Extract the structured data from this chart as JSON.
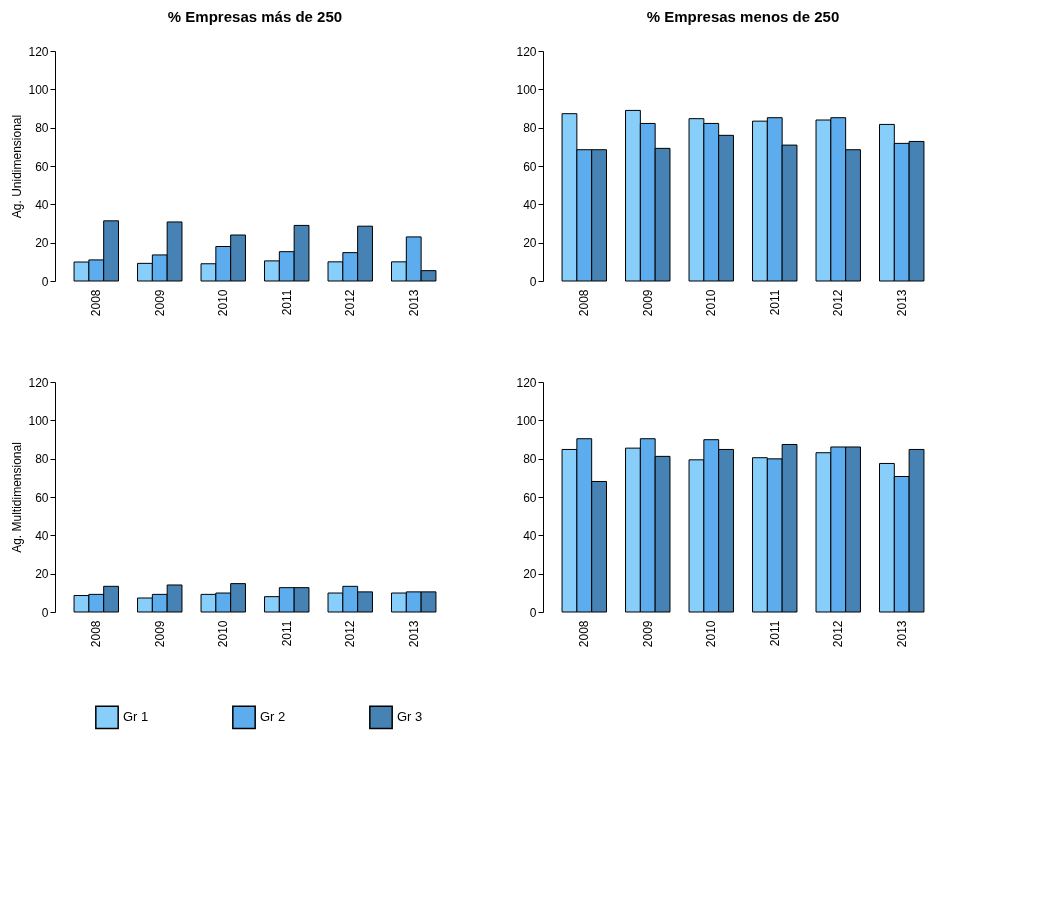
{
  "chart_data": [
    {
      "type": "bar",
      "title": "% Empresas más de 250",
      "ylabel": "Ag. Unidimensional",
      "categories": [
        "2008",
        "2009",
        "2010",
        "2011",
        "2012",
        "2013"
      ],
      "ylim": [
        0,
        120
      ],
      "yticks": [
        0,
        20,
        40,
        60,
        80,
        100,
        120
      ],
      "grid": false,
      "legend": "bottom",
      "series": [
        {
          "name": "Gr 1",
          "color": "#87cefa",
          "values": [
            9.9,
            9.2,
            9.0,
            10.5,
            10.0,
            10.0
          ]
        },
        {
          "name": "Gr 2",
          "color": "#5cacee",
          "values": [
            11.0,
            13.6,
            18.0,
            15.3,
            14.8,
            23.0
          ]
        },
        {
          "name": "Gr 3",
          "color": "#4682b4",
          "values": [
            31.4,
            30.8,
            24.0,
            29.0,
            28.6,
            5.4
          ]
        }
      ]
    },
    {
      "type": "bar",
      "title": "% Empresas menos de 250",
      "categories": [
        "2008",
        "2009",
        "2010",
        "2011",
        "2012",
        "2013"
      ],
      "ylim": [
        0,
        120
      ],
      "yticks": [
        0,
        20,
        40,
        60,
        80,
        100,
        120
      ],
      "grid": false,
      "legend": "bottom",
      "series": [
        {
          "name": "Gr 1",
          "color": "#87cefa",
          "values": [
            87.3,
            89.0,
            84.7,
            83.4,
            84.0,
            81.7
          ]
        },
        {
          "name": "Gr 2",
          "color": "#5cacee",
          "values": [
            68.5,
            82.2,
            82.2,
            85.2,
            85.2,
            71.8
          ]
        },
        {
          "name": "Gr 3",
          "color": "#4682b4",
          "values": [
            68.5,
            69.2,
            76.0,
            70.9,
            68.5,
            72.8
          ]
        }
      ]
    },
    {
      "type": "bar",
      "ylabel": "Ag. Multidimensional",
      "categories": [
        "2008",
        "2009",
        "2010",
        "2011",
        "2012",
        "2013"
      ],
      "ylim": [
        0,
        120
      ],
      "yticks": [
        0,
        20,
        40,
        60,
        80,
        100,
        120
      ],
      "grid": false,
      "legend": "bottom",
      "series": [
        {
          "name": "Gr 1",
          "color": "#87cefa",
          "values": [
            8.6,
            7.3,
            9.2,
            8.0,
            9.9,
            9.9
          ]
        },
        {
          "name": "Gr 2",
          "color": "#5cacee",
          "values": [
            9.2,
            9.2,
            9.9,
            12.7,
            13.4,
            10.5
          ]
        },
        {
          "name": "Gr 3",
          "color": "#4682b4",
          "values": [
            13.4,
            14.1,
            14.8,
            12.7,
            10.5,
            10.5
          ]
        }
      ]
    },
    {
      "type": "bar",
      "categories": [
        "2008",
        "2009",
        "2010",
        "2011",
        "2012",
        "2013"
      ],
      "ylim": [
        0,
        120
      ],
      "yticks": [
        0,
        20,
        40,
        60,
        80,
        100,
        120
      ],
      "grid": false,
      "legend": "bottom",
      "series": [
        {
          "name": "Gr 1",
          "color": "#87cefa",
          "values": [
            84.8,
            85.5,
            79.4,
            80.5,
            83.1,
            77.5
          ]
        },
        {
          "name": "Gr 2",
          "color": "#5cacee",
          "values": [
            90.4,
            90.4,
            89.9,
            79.9,
            86.1,
            70.7
          ]
        },
        {
          "name": "Gr 3",
          "color": "#4682b4",
          "values": [
            68.1,
            81.2,
            84.8,
            87.4,
            86.1,
            84.8
          ]
        }
      ]
    }
  ]
}
